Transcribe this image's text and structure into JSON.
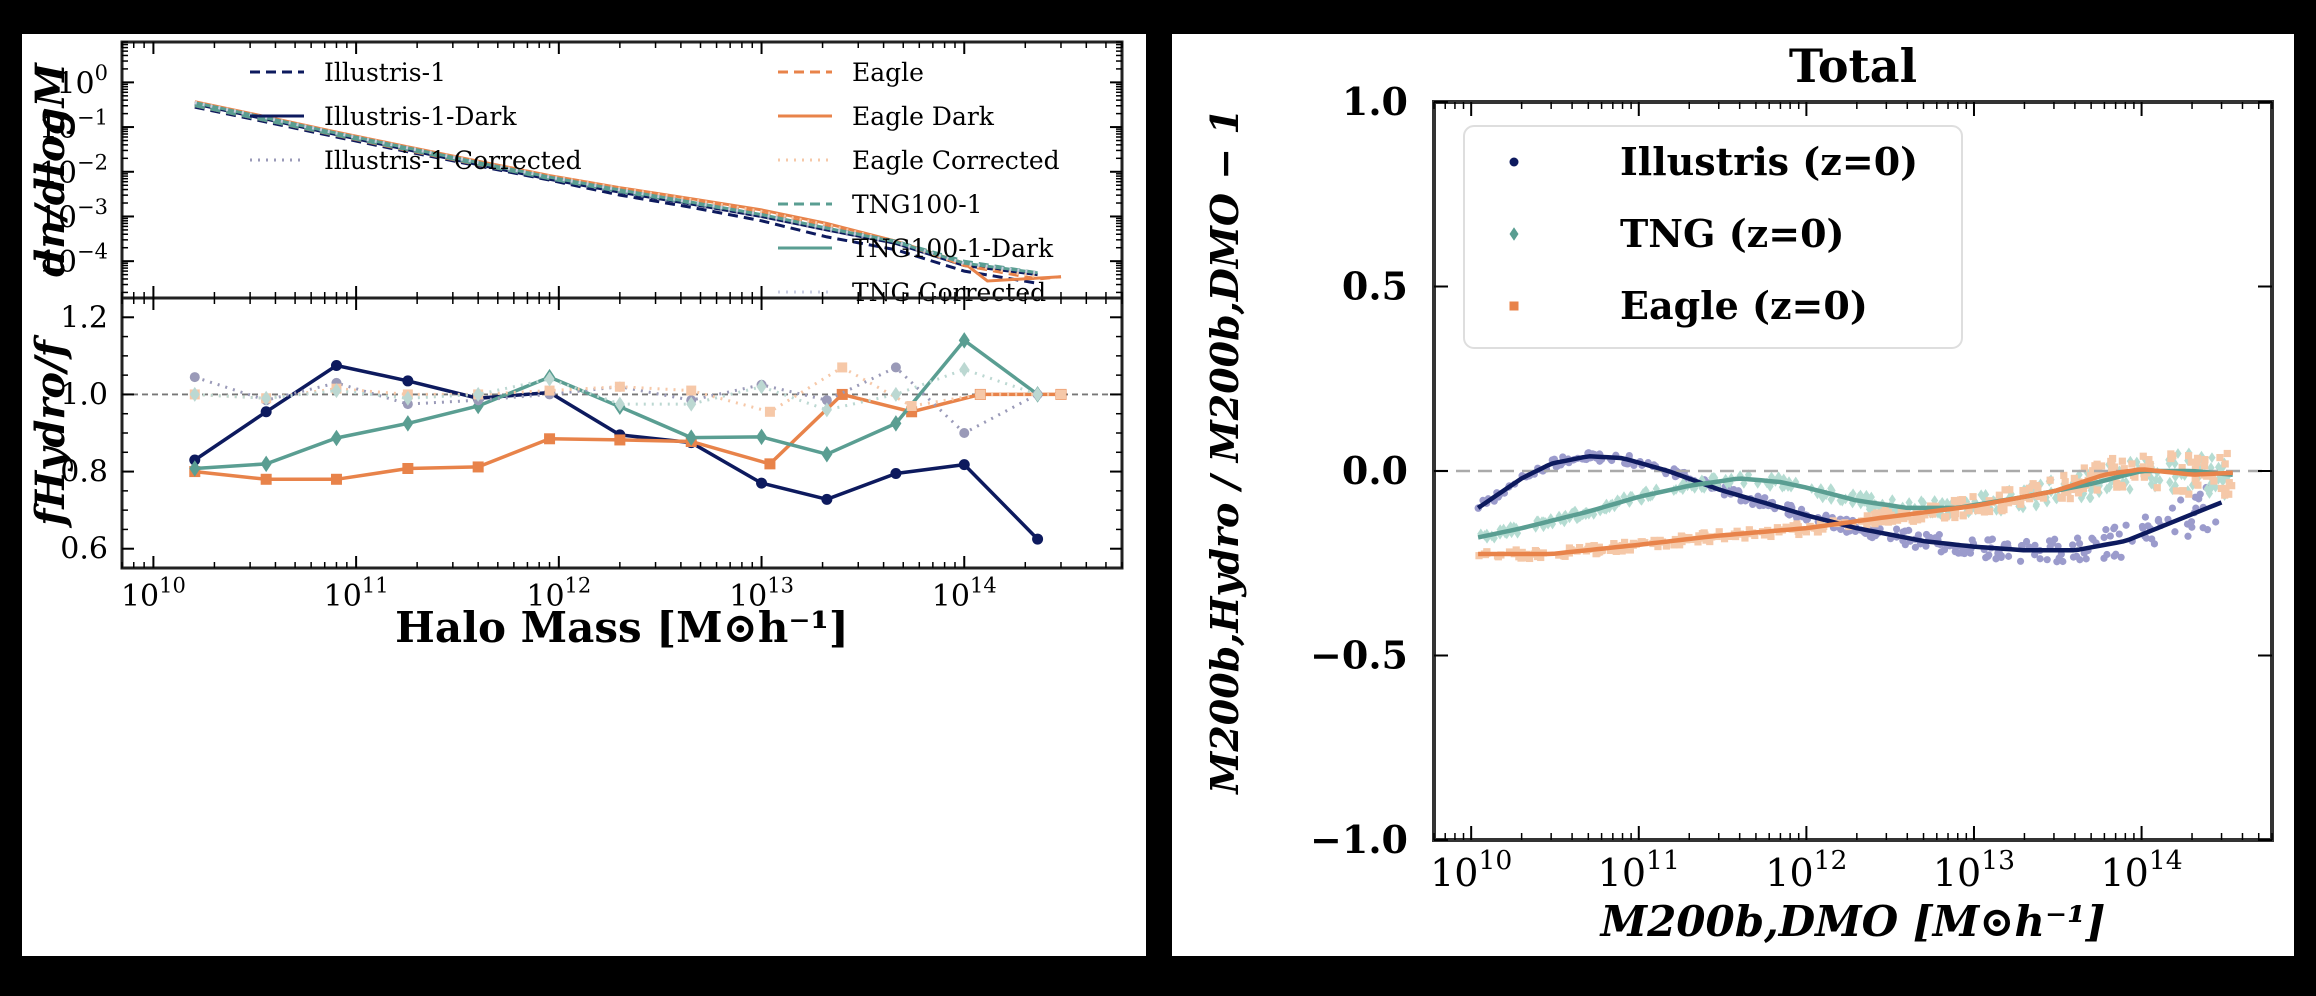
{
  "chart_data": [
    {
      "type": "line",
      "panel": "top-left",
      "xlabel": "",
      "ylabel": "dn/dlogM",
      "yscale": "log",
      "xscale": "log",
      "xlim": [
        7000000000.0,
        600000000000000.0
      ],
      "ylim": [
        1.5e-05,
        8
      ],
      "yticks": [
        {
          "v": 1,
          "t": "10",
          "e": "0"
        },
        {
          "v": 0.1,
          "t": "10",
          "e": "−1"
        },
        {
          "v": 0.01,
          "t": "10",
          "e": "−2"
        },
        {
          "v": 0.001,
          "t": "10",
          "e": "−3"
        },
        {
          "v": 0.0001,
          "t": "10",
          "e": "−4"
        }
      ],
      "legend_position": "top",
      "grid": false,
      "series": [
        {
          "name": "Illustris-1",
          "color": "#0d1a5e",
          "style": "dashed",
          "x": [
            16000000000.0,
            36000000000.0,
            80000000000.0,
            180000000000.0,
            400000000000.0,
            900000000000.0,
            2000000000000.0,
            4500000000000.0,
            10000000000000.0,
            21000000000000.0,
            46000000000000.0,
            100000000000000.0,
            230000000000000.0
          ],
          "y": [
            0.28,
            0.13,
            0.06,
            0.028,
            0.0135,
            0.0065,
            0.003,
            0.0016,
            0.0008,
            0.00035,
            0.00018,
            6e-05,
            3.2e-05
          ]
        },
        {
          "name": "Illustris-1-Dark",
          "color": "#0d1a5e",
          "style": "solid",
          "x": [
            16000000000.0,
            36000000000.0,
            80000000000.0,
            180000000000.0,
            400000000000.0,
            900000000000.0,
            2000000000000.0,
            4500000000000.0,
            10000000000000.0,
            21000000000000.0,
            46000000000000.0,
            100000000000000.0,
            230000000000000.0
          ],
          "y": [
            0.33,
            0.15,
            0.068,
            0.031,
            0.0145,
            0.0068,
            0.0035,
            0.0019,
            0.001,
            0.0005,
            0.00025,
            8e-05,
            5e-05
          ]
        },
        {
          "name": "Illustris-1 Corrected",
          "color": "#9a9ab8",
          "style": "dotted",
          "x": [
            16000000000.0,
            36000000000.0,
            80000000000.0,
            180000000000.0,
            400000000000.0,
            900000000000.0,
            2000000000000.0,
            4500000000000.0,
            10000000000000.0,
            21000000000000.0,
            46000000000000.0,
            100000000000000.0,
            230000000000000.0
          ],
          "y": [
            0.34,
            0.155,
            0.07,
            0.032,
            0.015,
            0.007,
            0.0035,
            0.0019,
            0.001,
            0.0005,
            0.00025,
            8e-05,
            5e-05
          ]
        },
        {
          "name": "Eagle",
          "color": "#e8834a",
          "style": "dashed",
          "x": [
            16000000000.0,
            36000000000.0,
            80000000000.0,
            180000000000.0,
            400000000000.0,
            900000000000.0,
            2000000000000.0,
            4500000000000.0,
            10000000000000.0,
            21000000000000.0,
            46000000000000.0,
            100000000000000.0,
            230000000000000.0,
            300000000000000.0
          ],
          "y": [
            0.3,
            0.14,
            0.065,
            0.03,
            0.0145,
            0.0072,
            0.0038,
            0.0022,
            0.0012,
            0.0006,
            0.00028,
            8e-05,
            4e-05,
            4.5e-05
          ]
        },
        {
          "name": "Eagle Dark",
          "color": "#e8834a",
          "style": "solid",
          "x": [
            16000000000.0,
            36000000000.0,
            80000000000.0,
            180000000000.0,
            400000000000.0,
            900000000000.0,
            2000000000000.0,
            4500000000000.0,
            10000000000000.0,
            21000000000000.0,
            46000000000000.0,
            100000000000000.0,
            130000000000000.0,
            300000000000000.0
          ],
          "y": [
            0.37,
            0.17,
            0.077,
            0.036,
            0.0172,
            0.0082,
            0.0044,
            0.0025,
            0.0014,
            0.0007,
            0.00028,
            9e-05,
            3.6e-05,
            4.5e-05
          ]
        },
        {
          "name": "Eagle Corrected",
          "color": "#f6c8a8",
          "style": "dotted",
          "x": [
            16000000000.0,
            36000000000.0,
            80000000000.0,
            180000000000.0,
            400000000000.0,
            900000000000.0,
            2000000000000.0,
            4500000000000.0,
            10000000000000.0,
            21000000000000.0,
            46000000000000.0,
            100000000000000.0,
            230000000000000.0
          ],
          "y": [
            0.36,
            0.165,
            0.075,
            0.035,
            0.0168,
            0.008,
            0.0043,
            0.0024,
            0.0013,
            0.00065,
            0.00027,
            8.5e-05,
            4.5e-05
          ]
        },
        {
          "name": "TNG100-1",
          "color": "#5a9e92",
          "style": "dashed",
          "x": [
            16000000000.0,
            36000000000.0,
            80000000000.0,
            180000000000.0,
            400000000000.0,
            900000000000.0,
            2000000000000.0,
            4500000000000.0,
            10000000000000.0,
            21000000000000.0,
            46000000000000.0,
            100000000000000.0,
            230000000000000.0
          ],
          "y": [
            0.3,
            0.14,
            0.066,
            0.031,
            0.0147,
            0.007,
            0.0036,
            0.002,
            0.0011,
            0.00055,
            0.00028,
            0.0001,
            5.5e-05
          ]
        },
        {
          "name": "TNG100-1-Dark",
          "color": "#5a9e92",
          "style": "solid",
          "x": [
            16000000000.0,
            36000000000.0,
            80000000000.0,
            180000000000.0,
            400000000000.0,
            900000000000.0,
            2000000000000.0,
            4500000000000.0,
            10000000000000.0,
            21000000000000.0,
            46000000000000.0,
            100000000000000.0,
            230000000000000.0
          ],
          "y": [
            0.35,
            0.16,
            0.073,
            0.034,
            0.016,
            0.0076,
            0.0039,
            0.0021,
            0.0011,
            0.00055,
            0.00027,
            9e-05,
            5.5e-05
          ]
        },
        {
          "name": "TNG Corrected",
          "color": "#c8cce0",
          "style": "dotted",
          "x": [
            16000000000.0,
            36000000000.0,
            80000000000.0,
            180000000000.0,
            400000000000.0,
            900000000000.0,
            2000000000000.0,
            4500000000000.0,
            10000000000000.0,
            21000000000000.0,
            46000000000000.0,
            100000000000000.0,
            230000000000000.0
          ],
          "y": [
            0.35,
            0.16,
            0.073,
            0.034,
            0.016,
            0.0076,
            0.0039,
            0.0021,
            0.0011,
            0.00055,
            0.00027,
            9e-05,
            5.5e-05
          ]
        }
      ]
    },
    {
      "type": "line",
      "panel": "bottom-left",
      "xlabel": "Halo Mass [M⊙h⁻¹]",
      "ylabel": "fHydro/f",
      "xscale": "log",
      "xlim": [
        7000000000.0,
        600000000000000.0
      ],
      "ylim": [
        0.55,
        1.25
      ],
      "yticks": [
        0.6,
        0.8,
        1.0,
        1.2
      ],
      "xticks": [
        {
          "v": 10000000000.0,
          "t": "10",
          "e": "10"
        },
        {
          "v": 100000000000.0,
          "t": "10",
          "e": "11"
        },
        {
          "v": 1000000000000.0,
          "t": "10",
          "e": "12"
        },
        {
          "v": 10000000000000.0,
          "t": "10",
          "e": "13"
        },
        {
          "v": 100000000000000.0,
          "t": "10",
          "e": "14"
        }
      ],
      "reference_line": 1.0,
      "series": [
        {
          "name": "Illustris-1",
          "color": "#0d1a5e",
          "style": "solid",
          "marker": "circle",
          "x": [
            16000000000.0,
            36000000000.0,
            80000000000.0,
            180000000000.0,
            400000000000.0,
            900000000000.0,
            2000000000000.0,
            4500000000000.0,
            10000000000000.0,
            21000000000000.0,
            46000000000000.0,
            100000000000000.0,
            230000000000000.0
          ],
          "y": [
            0.83,
            0.955,
            1.075,
            1.035,
            0.99,
            1.005,
            0.895,
            0.875,
            0.77,
            0.728,
            0.795,
            0.818,
            0.625
          ]
        },
        {
          "name": "Eagle",
          "color": "#e8834a",
          "style": "solid",
          "marker": "square",
          "x": [
            16000000000.0,
            36000000000.0,
            80000000000.0,
            180000000000.0,
            400000000000.0,
            900000000000.0,
            2000000000000.0,
            4500000000000.0,
            11000000000000.0,
            25000000000000.0,
            55000000000000.0,
            120000000000000.0,
            300000000000000.0
          ],
          "y": [
            0.8,
            0.78,
            0.78,
            0.808,
            0.812,
            0.885,
            0.882,
            0.878,
            0.82,
            1.0,
            0.955,
            1.0,
            1.0
          ]
        },
        {
          "name": "TNG100-1",
          "color": "#5a9e92",
          "style": "solid",
          "marker": "diamond",
          "x": [
            16000000000.0,
            36000000000.0,
            80000000000.0,
            180000000000.0,
            400000000000.0,
            900000000000.0,
            2000000000000.0,
            4500000000000.0,
            10000000000000.0,
            21000000000000.0,
            46000000000000.0,
            100000000000000.0,
            230000000000000.0
          ],
          "y": [
            0.808,
            0.82,
            0.887,
            0.925,
            0.97,
            1.045,
            0.968,
            0.888,
            0.89,
            0.845,
            0.925,
            1.14,
            1.0
          ]
        },
        {
          "name": "Illustris-1 Corrected",
          "color": "#9a9ab8",
          "style": "dotted",
          "marker": "circle",
          "x": [
            16000000000.0,
            36000000000.0,
            80000000000.0,
            180000000000.0,
            400000000000.0,
            900000000000.0,
            2000000000000.0,
            4500000000000.0,
            10000000000000.0,
            21000000000000.0,
            46000000000000.0,
            100000000000000.0,
            230000000000000.0
          ],
          "y": [
            1.045,
            0.985,
            1.03,
            0.975,
            0.985,
            1.0,
            1.02,
            0.985,
            1.025,
            0.985,
            1.07,
            0.9,
            1.0
          ]
        },
        {
          "name": "Eagle Corrected",
          "color": "#f6c8a8",
          "style": "dotted",
          "marker": "square",
          "x": [
            16000000000.0,
            36000000000.0,
            80000000000.0,
            180000000000.0,
            400000000000.0,
            900000000000.0,
            2000000000000.0,
            4500000000000.0,
            11000000000000.0,
            25000000000000.0,
            55000000000000.0,
            120000000000000.0,
            300000000000000.0
          ],
          "y": [
            1.0,
            0.99,
            1.015,
            1.0,
            1.0,
            1.01,
            1.02,
            1.01,
            0.955,
            1.07,
            0.97,
            1.0,
            1.0
          ]
        },
        {
          "name": "TNG Corrected",
          "color": "#bcd8d2",
          "style": "dotted",
          "marker": "diamond",
          "x": [
            16000000000.0,
            36000000000.0,
            80000000000.0,
            180000000000.0,
            400000000000.0,
            900000000000.0,
            2000000000000.0,
            4500000000000.0,
            10000000000000.0,
            21000000000000.0,
            46000000000000.0,
            100000000000000.0,
            230000000000000.0
          ],
          "y": [
            1.0,
            0.99,
            1.01,
            0.99,
            1.0,
            1.04,
            0.975,
            0.975,
            1.02,
            0.96,
            1.0,
            1.065,
            1.0
          ]
        }
      ]
    },
    {
      "type": "scatter",
      "panel": "right",
      "title": "Total",
      "xlabel": "M200b,DMO [M⊙h⁻¹]",
      "ylabel": "M200b,Hydro / M200b,DMO − 1",
      "xscale": "log",
      "xlim": [
        6000000000.0,
        600000000000000.0
      ],
      "ylim": [
        -1.0,
        1.0
      ],
      "yticks": [
        {
          "v": 1.0,
          "t": "1.0"
        },
        {
          "v": 0.5,
          "t": "0.5"
        },
        {
          "v": 0.0,
          "t": "0.0"
        },
        {
          "v": -0.5,
          "t": "−0.5"
        },
        {
          "v": -1.0,
          "t": "−1.0"
        }
      ],
      "xticks": [
        {
          "v": 10000000000.0,
          "t": "10",
          "e": "10"
        },
        {
          "v": 100000000000.0,
          "t": "10",
          "e": "11"
        },
        {
          "v": 1000000000000.0,
          "t": "10",
          "e": "12"
        },
        {
          "v": 10000000000000.0,
          "t": "10",
          "e": "13"
        },
        {
          "v": 100000000000000.0,
          "t": "10",
          "e": "14"
        }
      ],
      "reference_line": 0.0,
      "legend_position": "top-left",
      "series": [
        {
          "name": "Illustris (z=0)",
          "color": "#0d1a5e",
          "scatter_color": "#9b9bcc",
          "marker": "circle",
          "fit_x": [
            11000000000.0,
            20000000000.0,
            30000000000.0,
            50000000000.0,
            80000000000.0,
            150000000000.0,
            300000000000.0,
            600000000000.0,
            1000000000000.0,
            2000000000000.0,
            5000000000000.0,
            10000000000000.0,
            20000000000000.0,
            40000000000000.0,
            80000000000000.0,
            150000000000000.0,
            300000000000000.0
          ],
          "fit_y": [
            -0.1,
            -0.02,
            0.02,
            0.04,
            0.035,
            0.0,
            -0.05,
            -0.09,
            -0.12,
            -0.155,
            -0.19,
            -0.205,
            -0.215,
            -0.215,
            -0.19,
            -0.14,
            -0.085
          ]
        },
        {
          "name": "TNG (z=0)",
          "color": "#5a9e92",
          "scatter_color": "#b5dcd2",
          "marker": "diamond",
          "fit_x": [
            11000000000.0,
            20000000000.0,
            50000000000.0,
            100000000000.0,
            200000000000.0,
            400000000000.0,
            700000000000.0,
            1000000000000.0,
            2000000000000.0,
            4000000000000.0,
            8000000000000.0,
            20000000000000.0,
            50000000000000.0,
            100000000000000.0,
            200000000000000.0,
            350000000000000.0
          ],
          "fit_y": [
            -0.18,
            -0.155,
            -0.11,
            -0.07,
            -0.04,
            -0.02,
            -0.03,
            -0.045,
            -0.08,
            -0.1,
            -0.1,
            -0.07,
            -0.035,
            -0.0,
            -0.0,
            -0.01
          ]
        },
        {
          "name": "Eagle (z=0)",
          "color": "#e8834a",
          "scatter_color": "#f5c8a8",
          "marker": "square",
          "fit_x": [
            11000000000.0,
            30000000000.0,
            100000000000.0,
            300000000000.0,
            1000000000000.0,
            3000000000000.0,
            10000000000000.0,
            30000000000000.0,
            60000000000000.0,
            100000000000000.0,
            200000000000000.0,
            350000000000000.0
          ],
          "fit_y": [
            -0.225,
            -0.225,
            -0.2,
            -0.175,
            -0.155,
            -0.125,
            -0.095,
            -0.055,
            -0.01,
            0.005,
            -0.01,
            -0.005
          ]
        }
      ]
    }
  ]
}
